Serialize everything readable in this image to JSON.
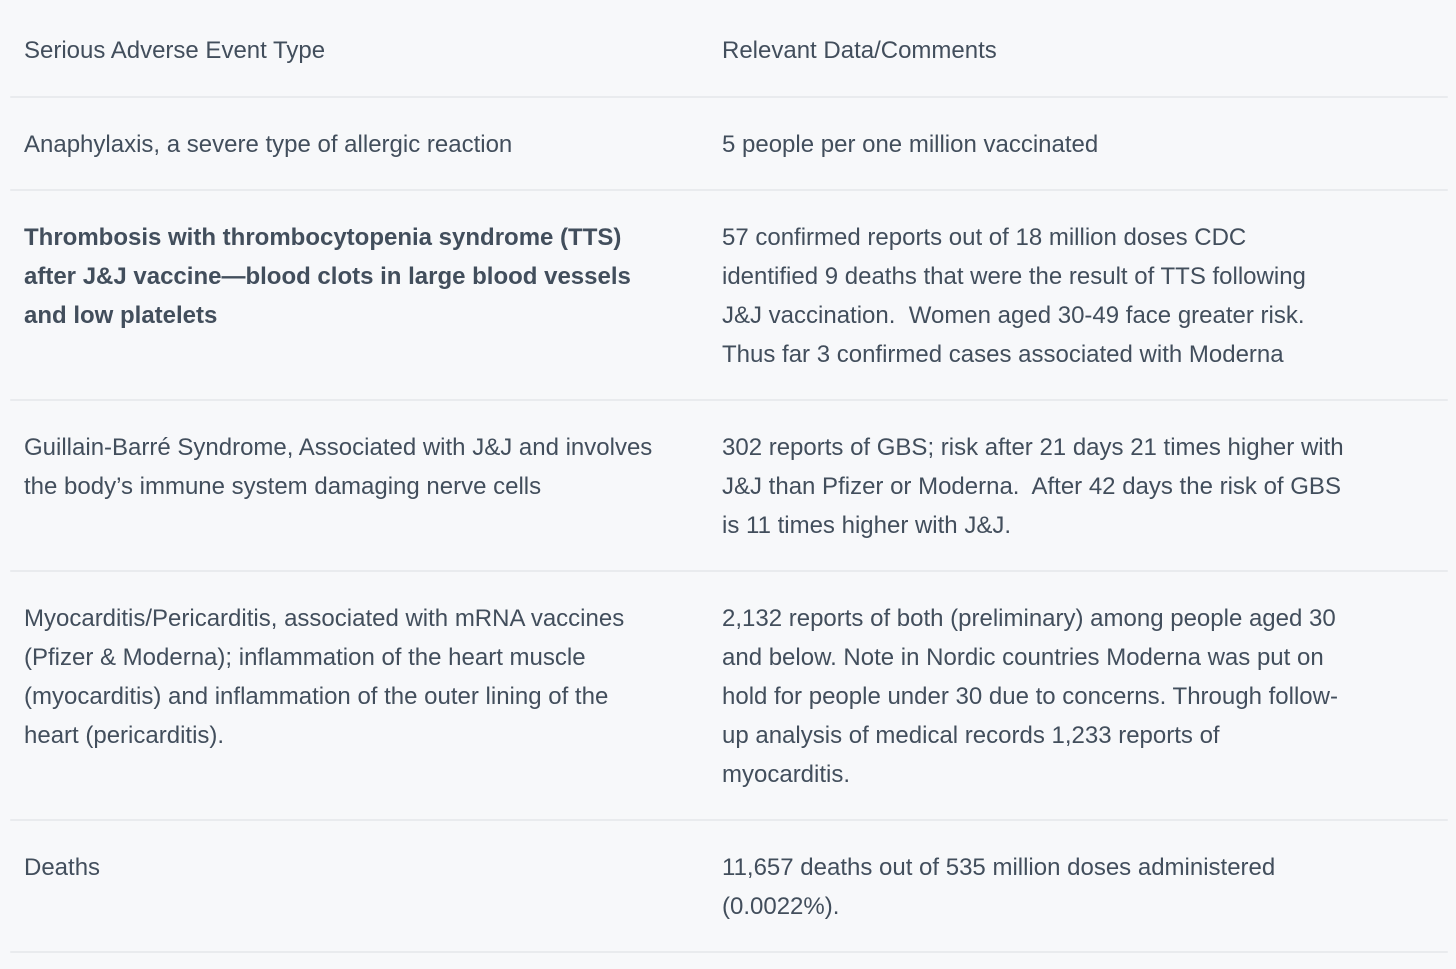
{
  "page": {
    "background_color": "#f7f8fa",
    "text_color": "#424e5c",
    "divider_color": "#e9ebee"
  },
  "table": {
    "columns": [
      {
        "label": "Serious Adverse Event Type"
      },
      {
        "label": "Relevant Data/Comments"
      }
    ],
    "rows": [
      {
        "event": "Anaphylaxis, a severe type of allergic reaction",
        "bold": false,
        "data": "5 people per one million vaccinated"
      },
      {
        "event": "Thrombosis with thrombocytopenia syndrome (TTS) after J&J vaccine—blood clots in large blood vessels and low platelets",
        "bold": true,
        "data": "57 confirmed reports out of 18 million doses CDC identified 9 deaths that were the result of TTS following J&J vaccination.  Women aged 30-49 face greater risk. Thus far 3 confirmed cases associated with Moderna"
      },
      {
        "event": "Guillain-Barré Syndrome, Associated with J&J and involves the body’s immune system damaging nerve cells",
        "bold": false,
        "data": "302 reports of GBS; risk after 21 days 21 times higher with J&J than Pfizer or Moderna.  After 42 days the risk of GBS is 11 times higher with J&J."
      },
      {
        "event": "Myocarditis/Pericarditis, associated with mRNA vaccines (Pfizer & Moderna); inflammation of the heart muscle (myocarditis) and inflammation of the outer lining of the heart (pericarditis).",
        "bold": false,
        "data": "2,132 reports of both (preliminary) among people aged 30 and below. Note in Nordic countries Moderna was put on hold for people under 30 due to concerns. Through follow-up analysis of medical records 1,233 reports of myocarditis."
      },
      {
        "event": "Deaths",
        "bold": false,
        "data": "11,657 deaths out of 535 million doses administered (0.0022%)."
      }
    ]
  }
}
